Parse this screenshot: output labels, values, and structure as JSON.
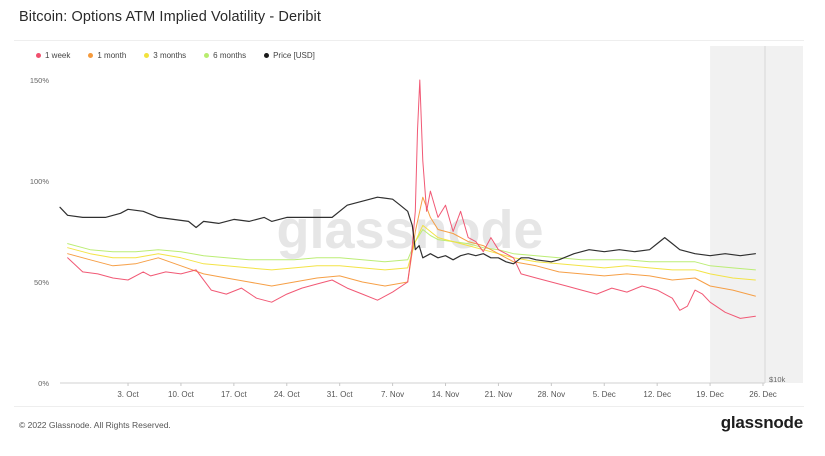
{
  "header": {
    "title": "Bitcoin: Options ATM Implied Volatility - Deribit"
  },
  "legend": [
    {
      "label": "1 week",
      "color": "#f0506e"
    },
    {
      "label": "1 month",
      "color": "#f59a3c"
    },
    {
      "label": "3 months",
      "color": "#f2e23c"
    },
    {
      "label": "6 months",
      "color": "#b8ec6e"
    },
    {
      "label": "Price [USD]",
      "color": "#1a1a1a"
    }
  ],
  "watermark": "glassnode",
  "footer": {
    "copyright": "© 2022 Glassnode. All Rights Reserved.",
    "brand": "glassnode"
  },
  "chart_data": {
    "type": "line",
    "title": "Bitcoin: Options ATM Implied Volatility - Deribit",
    "y_left_ticks": [
      "0%",
      "50%",
      "100%",
      "150%"
    ],
    "ylim_left_pct": [
      0,
      150
    ],
    "y_right_ticks": [
      "$10k"
    ],
    "x_ticks": [
      "3. Oct",
      "10. Oct",
      "17. Oct",
      "24. Oct",
      "31. Oct",
      "7. Nov",
      "14. Nov",
      "21. Nov",
      "28. Nov",
      "5. Dec",
      "12. Dec",
      "19. Dec",
      "26. Dec"
    ],
    "x_range_days": [
      -6,
      87
    ],
    "price_scale": {
      "ymin_pct": 0,
      "ymax_pct": 150,
      "label_value_usd": 10000
    },
    "forecast_shade_start_day": 80,
    "grid": false,
    "legend_position": "top-left",
    "series": [
      {
        "name": "1 week",
        "color": "#f0506e",
        "points": [
          [
            -5,
            62
          ],
          [
            -3,
            55
          ],
          [
            -1,
            54
          ],
          [
            1,
            52
          ],
          [
            3,
            51
          ],
          [
            5,
            55
          ],
          [
            6,
            53
          ],
          [
            8,
            55
          ],
          [
            10,
            54
          ],
          [
            12,
            56
          ],
          [
            14,
            46
          ],
          [
            16,
            44
          ],
          [
            18,
            47
          ],
          [
            20,
            42
          ],
          [
            22,
            40
          ],
          [
            24,
            44
          ],
          [
            26,
            47
          ],
          [
            28,
            49
          ],
          [
            30,
            51
          ],
          [
            32,
            47
          ],
          [
            34,
            44
          ],
          [
            36,
            41
          ],
          [
            38,
            45
          ],
          [
            40,
            50
          ],
          [
            40.5,
            64
          ],
          [
            41,
            85
          ],
          [
            41.3,
            125
          ],
          [
            41.6,
            150
          ],
          [
            42,
            110
          ],
          [
            42.5,
            85
          ],
          [
            43,
            95
          ],
          [
            44,
            82
          ],
          [
            45,
            88
          ],
          [
            46,
            75
          ],
          [
            47,
            85
          ],
          [
            48,
            72
          ],
          [
            49,
            70
          ],
          [
            50,
            65
          ],
          [
            51,
            72
          ],
          [
            52,
            66
          ],
          [
            53,
            64
          ],
          [
            54,
            62
          ],
          [
            55,
            54
          ],
          [
            57,
            52
          ],
          [
            59,
            50
          ],
          [
            61,
            48
          ],
          [
            63,
            46
          ],
          [
            65,
            44
          ],
          [
            67,
            47
          ],
          [
            69,
            45
          ],
          [
            71,
            48
          ],
          [
            73,
            46
          ],
          [
            75,
            42
          ],
          [
            76,
            36
          ],
          [
            77,
            38
          ],
          [
            78,
            46
          ],
          [
            79,
            44
          ],
          [
            80,
            40
          ],
          [
            82,
            35
          ],
          [
            84,
            32
          ],
          [
            86,
            33
          ]
        ]
      },
      {
        "name": "1 month",
        "color": "#f59a3c",
        "points": [
          [
            -5,
            64
          ],
          [
            -2,
            61
          ],
          [
            1,
            58
          ],
          [
            4,
            59
          ],
          [
            7,
            62
          ],
          [
            10,
            58
          ],
          [
            13,
            54
          ],
          [
            16,
            52
          ],
          [
            19,
            50
          ],
          [
            22,
            48
          ],
          [
            25,
            50
          ],
          [
            28,
            52
          ],
          [
            31,
            53
          ],
          [
            34,
            50
          ],
          [
            37,
            48
          ],
          [
            40,
            50
          ],
          [
            41,
            75
          ],
          [
            42,
            92
          ],
          [
            43,
            82
          ],
          [
            44,
            76
          ],
          [
            46,
            74
          ],
          [
            48,
            70
          ],
          [
            50,
            68
          ],
          [
            52,
            64
          ],
          [
            54,
            60
          ],
          [
            57,
            58
          ],
          [
            60,
            55
          ],
          [
            63,
            54
          ],
          [
            66,
            53
          ],
          [
            69,
            54
          ],
          [
            72,
            53
          ],
          [
            75,
            51
          ],
          [
            78,
            52
          ],
          [
            80,
            48
          ],
          [
            83,
            46
          ],
          [
            86,
            43
          ]
        ]
      },
      {
        "name": "3 months",
        "color": "#f2e23c",
        "points": [
          [
            -5,
            67
          ],
          [
            -2,
            64
          ],
          [
            1,
            62
          ],
          [
            4,
            62
          ],
          [
            7,
            64
          ],
          [
            10,
            62
          ],
          [
            13,
            59
          ],
          [
            16,
            58
          ],
          [
            19,
            57
          ],
          [
            22,
            56
          ],
          [
            25,
            57
          ],
          [
            28,
            58
          ],
          [
            31,
            58
          ],
          [
            34,
            57
          ],
          [
            37,
            56
          ],
          [
            40,
            57
          ],
          [
            41,
            70
          ],
          [
            42,
            78
          ],
          [
            43,
            75
          ],
          [
            44,
            72
          ],
          [
            46,
            70
          ],
          [
            48,
            68
          ],
          [
            50,
            66
          ],
          [
            52,
            64
          ],
          [
            54,
            62
          ],
          [
            57,
            60
          ],
          [
            60,
            59
          ],
          [
            63,
            58
          ],
          [
            66,
            57
          ],
          [
            69,
            58
          ],
          [
            72,
            57
          ],
          [
            75,
            56
          ],
          [
            78,
            56
          ],
          [
            80,
            54
          ],
          [
            83,
            52
          ],
          [
            86,
            51
          ]
        ]
      },
      {
        "name": "6 months",
        "color": "#b8ec6e",
        "points": [
          [
            -5,
            69
          ],
          [
            -2,
            66
          ],
          [
            1,
            65
          ],
          [
            4,
            65
          ],
          [
            7,
            66
          ],
          [
            10,
            65
          ],
          [
            13,
            63
          ],
          [
            16,
            62
          ],
          [
            19,
            61
          ],
          [
            22,
            61
          ],
          [
            25,
            61
          ],
          [
            28,
            62
          ],
          [
            31,
            62
          ],
          [
            34,
            61
          ],
          [
            37,
            60
          ],
          [
            40,
            61
          ],
          [
            41,
            70
          ],
          [
            42,
            76
          ],
          [
            43,
            73
          ],
          [
            44,
            71
          ],
          [
            46,
            70
          ],
          [
            48,
            69
          ],
          [
            50,
            67
          ],
          [
            52,
            66
          ],
          [
            54,
            64
          ],
          [
            57,
            63
          ],
          [
            60,
            62
          ],
          [
            63,
            61
          ],
          [
            66,
            61
          ],
          [
            69,
            61
          ],
          [
            72,
            60
          ],
          [
            75,
            60
          ],
          [
            78,
            60
          ],
          [
            80,
            58
          ],
          [
            83,
            57
          ],
          [
            86,
            56
          ]
        ]
      },
      {
        "name": "Price [USD]",
        "color": "#1a1a1a",
        "points": [
          [
            -6,
            87
          ],
          [
            -5,
            83
          ],
          [
            -3,
            82
          ],
          [
            0,
            82
          ],
          [
            2,
            84
          ],
          [
            3,
            86
          ],
          [
            5,
            85
          ],
          [
            7,
            82
          ],
          [
            9,
            81
          ],
          [
            11,
            80
          ],
          [
            12,
            77
          ],
          [
            13,
            80
          ],
          [
            15,
            79
          ],
          [
            17,
            81
          ],
          [
            19,
            80
          ],
          [
            21,
            82
          ],
          [
            22,
            80
          ],
          [
            24,
            82
          ],
          [
            26,
            82
          ],
          [
            28,
            82
          ],
          [
            30,
            82
          ],
          [
            32,
            88
          ],
          [
            34,
            90
          ],
          [
            36,
            92
          ],
          [
            38,
            91
          ],
          [
            39,
            88
          ],
          [
            40,
            85
          ],
          [
            40.6,
            78
          ],
          [
            41,
            66
          ],
          [
            41.5,
            68
          ],
          [
            42,
            62
          ],
          [
            43,
            64
          ],
          [
            44,
            62
          ],
          [
            45,
            63
          ],
          [
            46,
            61
          ],
          [
            47,
            63
          ],
          [
            48,
            64
          ],
          [
            49,
            63
          ],
          [
            50,
            64
          ],
          [
            51,
            62
          ],
          [
            52,
            62
          ],
          [
            53,
            60
          ],
          [
            54,
            59
          ],
          [
            55,
            62
          ],
          [
            56,
            62
          ],
          [
            57,
            61
          ],
          [
            59,
            60
          ],
          [
            60,
            61
          ],
          [
            62,
            64
          ],
          [
            64,
            66
          ],
          [
            66,
            65
          ],
          [
            68,
            66
          ],
          [
            70,
            65
          ],
          [
            72,
            66
          ],
          [
            73,
            69
          ],
          [
            74,
            72
          ],
          [
            75,
            69
          ],
          [
            76,
            66
          ],
          [
            78,
            64
          ],
          [
            80,
            63
          ],
          [
            82,
            64
          ],
          [
            84,
            63
          ],
          [
            86,
            64
          ]
        ]
      }
    ]
  }
}
